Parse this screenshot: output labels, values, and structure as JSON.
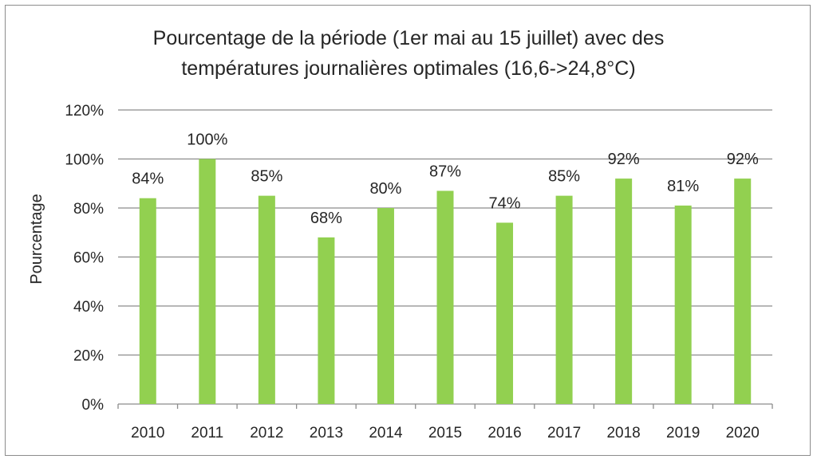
{
  "chart_data": {
    "type": "bar",
    "title_line1": "Pourcentage de la période (1er mai au 15 juillet) avec des",
    "title_line2": "températures journalières optimales  (16,6->24,8°C)",
    "xlabel": "",
    "ylabel": "Pourcentage",
    "categories": [
      "2010",
      "2011",
      "2012",
      "2013",
      "2014",
      "2015",
      "2016",
      "2017",
      "2018",
      "2019",
      "2020"
    ],
    "values": [
      84,
      100,
      85,
      68,
      80,
      87,
      74,
      85,
      92,
      81,
      92
    ],
    "data_labels": [
      "84%",
      "100%",
      "85%",
      "68%",
      "80%",
      "87%",
      "74%",
      "85%",
      "92%",
      "81%",
      "92%"
    ],
    "ylim": [
      0,
      120
    ],
    "yticks": [
      0,
      20,
      40,
      60,
      80,
      100,
      120
    ],
    "ytick_labels": [
      "0%",
      "20%",
      "40%",
      "60%",
      "80%",
      "100%",
      "120%"
    ],
    "grid": true,
    "legend": "none",
    "bar_color": "#92d050",
    "grid_color": "#8c8c8c"
  }
}
